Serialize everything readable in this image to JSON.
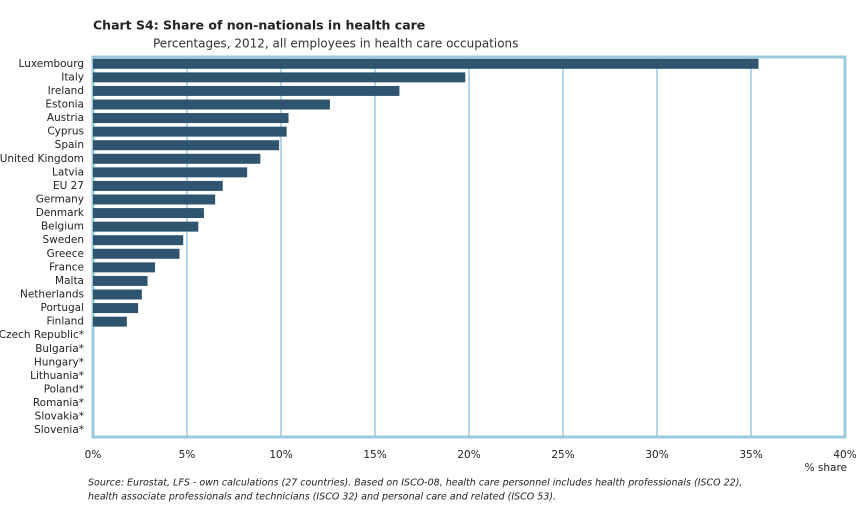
{
  "chart_data": {
    "type": "bar",
    "orientation": "horizontal",
    "title": "Chart S4: Share of non-nationals in health care",
    "subtitle": "Percentages, 2012, all employees in health care occupations",
    "x_label": "% share",
    "source": [
      "Source: Eurostat, LFS - own calculations (27 countries). Based on ISCO-08, health care personnel includes health professionals (ISCO 22),",
      "health associate professionals and technicians (ISCO 32) and personal care and related (ISCO 53)."
    ],
    "categories": [
      "Luxembourg",
      "Italy",
      "Ireland",
      "Estonia",
      "Austria",
      "Cyprus",
      "Spain",
      "United Kingdom",
      "Latvia",
      "EU 27",
      "Germany",
      "Denmark",
      "Belgium",
      "Sweden",
      "Greece",
      "France",
      "Malta",
      "Netherlands",
      "Portugal",
      "Finland",
      "Czech Republic*",
      "Bulgaria*",
      "Hungary*",
      "Lithuania*",
      "Poland*",
      "Romania*",
      "Slovakia*",
      "Slovenia*"
    ],
    "values": [
      35.4,
      19.8,
      16.3,
      12.6,
      10.4,
      10.3,
      9.9,
      8.9,
      8.2,
      6.9,
      6.5,
      5.9,
      5.6,
      4.8,
      4.6,
      3.3,
      2.9,
      2.6,
      2.4,
      1.8,
      null,
      null,
      null,
      null,
      null,
      null,
      null,
      null
    ],
    "color": "#2e5470",
    "grid_color": "#9ccbe0",
    "xlim": [
      0,
      40
    ],
    "xticks": [
      {
        "value": 0,
        "label": "0%"
      },
      {
        "value": 5,
        "label": "5%"
      },
      {
        "value": 10,
        "label": "10%"
      },
      {
        "value": 15,
        "label": "15%"
      },
      {
        "value": 20,
        "label": "20%"
      },
      {
        "value": 25,
        "label": "25%"
      },
      {
        "value": 30,
        "label": "30%"
      },
      {
        "value": 35,
        "label": "35%"
      },
      {
        "value": 40,
        "label": "40%"
      }
    ],
    "grid": true
  }
}
